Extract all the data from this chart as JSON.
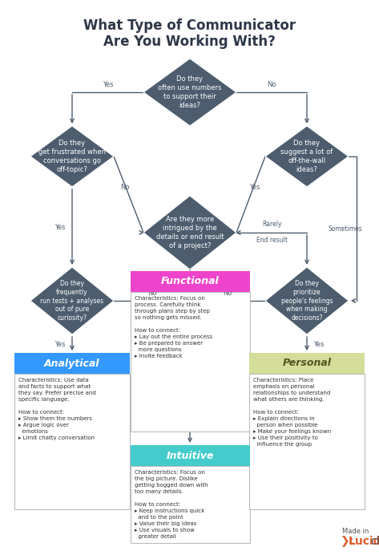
{
  "title_line1": "What Type of Communicator",
  "title_line2": "Are You Working With?",
  "bg_color": "#ffffff",
  "diamond_color": "#4d5d6e",
  "arrow_color": "#4d5d6e",
  "analytical_color": "#3399ff",
  "functional_color": "#ee44cc",
  "intuitive_color": "#44cccc",
  "personal_color": "#d4dd99",
  "personal_header_text_color": "#555533",
  "lucidchart_color": "#e05a2b",
  "q1_text": "Do they\noften use numbers\nto support their\nideas?",
  "q2_text": "Do they\nget frustrated when\nconversations go\noff-topic?",
  "q3_text": "Are they more\nintrigued by the\ndetails or end result\nof a project?",
  "q4_text": "Do they\nsuggest a lot of\noff-the-wall\nideas?",
  "q5_text": "Do they\nfrequently\nrun tests + analyses\nout of pure\ncuriosity?",
  "q6_text": "Do they\nprioritize\npeople's feelings\nwhen making\ndecisions?",
  "analytical_header": "Analytical",
  "analytical_body": "Characteristics: Use data\nand facts to support what\nthey say. Prefer precise and\nspecific language.\n\nHow to connect:\n▸ Show them the numbers\n▸ Argue logic over\n  emotions\n▸ Limit chatty conversation",
  "functional_header": "Functional",
  "functional_body": "Characteristics: Focus on\nprocess. Carefully think\nthrough plans step by step\nso nothing gets missed.\n\nHow to connect:\n▸ Lay out the entire process\n▸ Be prepared to answer\n  more questions\n▸ Invite feedback",
  "intuitive_header": "Intuitive",
  "intuitive_body": "Characteristics: Focus on\nthe big picture. Dislike\ngetting bogged down with\ntoo many details.\n\nHow to connect:\n▸ Keep instructions quick\n  and to the point\n▸ Value their big ideas\n▸ Use visuals to show\n  greater detail",
  "personal_header": "Personal",
  "personal_body": "Characteristics: Place\nemphasis on personal\nrelationships to understand\nwhat others are thinking.\n\nHow to connect:\n▸ Explain directions in\n  person when possible\n▸ Make your feelings known\n▸ Use their positivity to\n  influence the group"
}
